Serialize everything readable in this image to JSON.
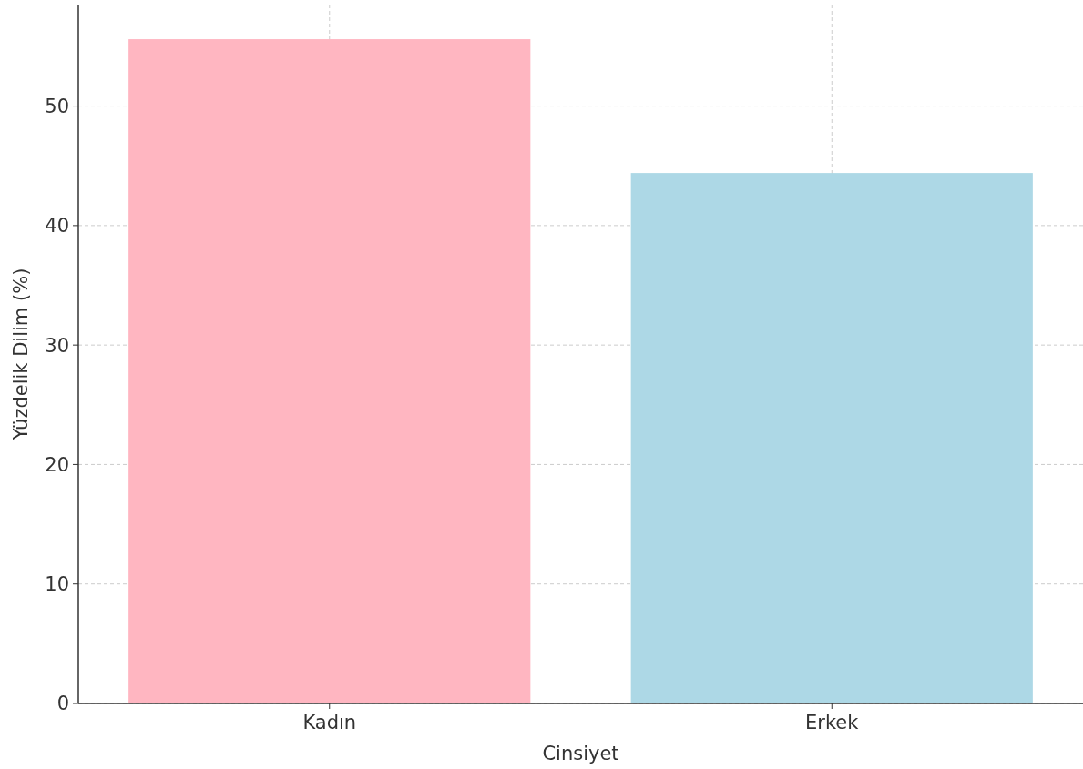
{
  "chart_data": {
    "type": "bar",
    "xlabel": "Cinsiyet",
    "ylabel": "Yüzdelik Dilim (%)",
    "categories": [
      "Kadın",
      "Erkek"
    ],
    "values": [
      55.6,
      44.4
    ],
    "colors": [
      "#ffb6c1",
      "#add8e6"
    ],
    "ylim": [
      0,
      58.5
    ],
    "yticks": [
      0,
      10,
      20,
      30,
      40,
      50
    ],
    "grid": true
  }
}
